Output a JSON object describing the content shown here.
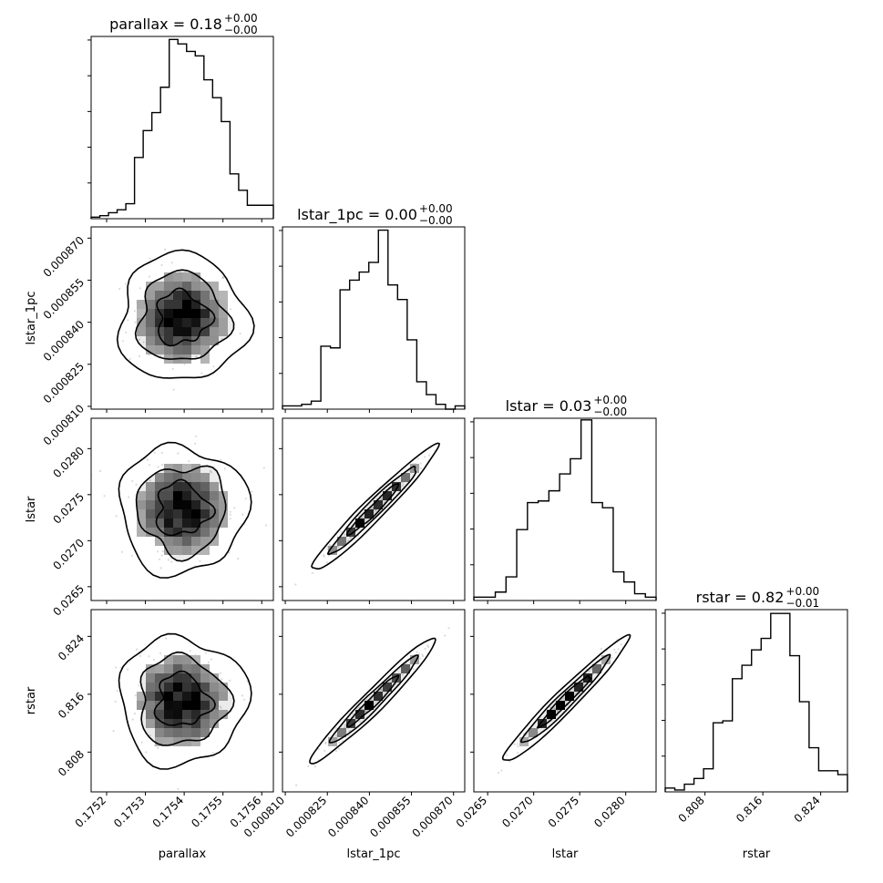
{
  "chart_data": {
    "type": "corner",
    "params": [
      "parallax",
      "lstar_1pc",
      "lstar",
      "rstar"
    ],
    "titles": [
      {
        "param": "parallax",
        "main": "parallax = 0.18",
        "sup": "+0.00",
        "sub": "−0.00"
      },
      {
        "param": "lstar_1pc",
        "main": "lstar_1pc = 0.00",
        "sup": "+0.00",
        "sub": "−0.00"
      },
      {
        "param": "lstar",
        "main": "lstar = 0.03",
        "sup": "+0.00",
        "sub": "−0.00"
      },
      {
        "param": "rstar",
        "main": "rstar = 0.82",
        "sup": "+0.00",
        "sub": "−0.01"
      }
    ],
    "axis_labels": [
      "parallax",
      "lstar_1pc",
      "lstar",
      "rstar"
    ],
    "ranges": [
      [
        0.17516,
        0.17563
      ],
      [
        0.000809,
        0.000874
      ],
      [
        0.02635,
        0.02833
      ],
      [
        0.8025,
        0.8277
      ]
    ],
    "ticks": [
      {
        "values": [
          0.1752,
          0.1753,
          0.1754,
          0.1755,
          0.1756
        ],
        "labels": [
          "0.1752",
          "0.1753",
          "0.1754",
          "0.1755",
          "0.1756"
        ]
      },
      {
        "values": [
          0.00081,
          0.000825,
          0.00084,
          0.000855,
          0.00087
        ],
        "labels": [
          "0.000810",
          "0.000825",
          "0.000840",
          "0.000855",
          "0.000870"
        ]
      },
      {
        "values": [
          0.0265,
          0.027,
          0.0275,
          0.028
        ],
        "labels": [
          "0.0265",
          "0.0270",
          "0.0275",
          "0.0280"
        ]
      },
      {
        "values": [
          0.808,
          0.816,
          0.824
        ],
        "labels": [
          "0.808",
          "0.816",
          "0.824"
        ]
      }
    ],
    "histograms": [
      [
        1,
        2,
        4,
        6,
        10,
        41,
        59,
        71,
        88,
        120,
        117,
        112,
        109,
        93,
        81,
        65,
        30,
        19,
        9,
        9,
        9
      ],
      [
        2,
        2,
        3,
        5,
        39,
        38,
        74,
        80,
        85,
        91,
        111,
        77,
        68,
        43,
        17,
        9,
        3,
        0,
        2
      ],
      [
        2,
        2,
        5,
        14,
        42,
        58,
        59,
        65,
        75,
        84,
        107,
        58,
        55,
        17,
        11,
        4,
        2
      ],
      [
        2,
        1,
        4,
        7,
        12,
        36,
        37,
        59,
        66,
        74,
        80,
        93,
        93,
        71,
        47,
        23,
        11,
        11,
        9
      ]
    ],
    "hist_max": [
      122,
      113,
      108,
      95
    ],
    "grid": false,
    "legend": "none"
  }
}
